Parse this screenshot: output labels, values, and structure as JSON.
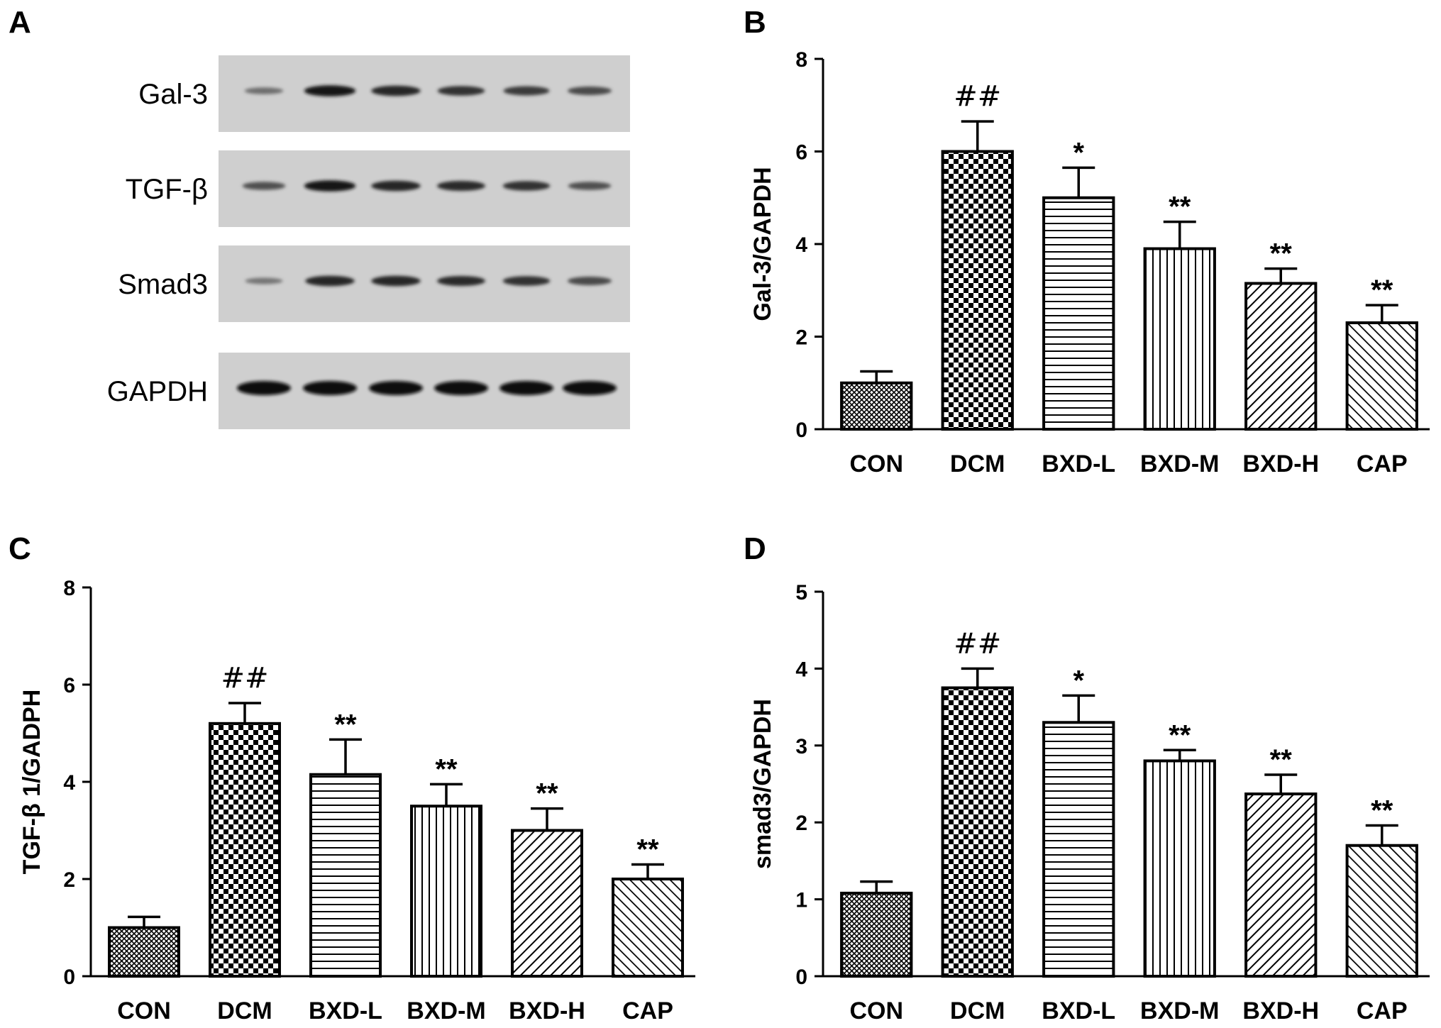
{
  "western_blot": {
    "panel_letter": "A",
    "lanes": 6,
    "rows": [
      {
        "label": "Gal-3",
        "intensities": [
          0.35,
          0.95,
          0.85,
          0.75,
          0.7,
          0.6
        ]
      },
      {
        "label": "TGF-β",
        "intensities": [
          0.55,
          0.95,
          0.85,
          0.8,
          0.75,
          0.55
        ]
      },
      {
        "label": "Smad3",
        "intensities": [
          0.3,
          0.85,
          0.85,
          0.8,
          0.75,
          0.6
        ]
      },
      {
        "label": "GAPDH",
        "intensities": [
          1.0,
          1.0,
          1.0,
          1.0,
          1.0,
          1.0
        ]
      }
    ]
  },
  "chart_data": [
    {
      "panel_letter": "B",
      "type": "bar",
      "categories": [
        "CON",
        "DCM",
        "BXD-L",
        "BXD-M",
        "BXD-H",
        "CAP"
      ],
      "values": [
        1.0,
        6.0,
        5.0,
        3.9,
        3.15,
        2.3
      ],
      "errors": [
        0.25,
        0.65,
        0.65,
        0.58,
        0.32,
        0.38
      ],
      "annotations": [
        "",
        "##",
        "*",
        "**",
        "**",
        "**"
      ],
      "ylabel": "Gal-3/GAPDH",
      "ylim": [
        0,
        8
      ],
      "yticks": [
        "0",
        "2",
        "4",
        "6",
        "8"
      ]
    },
    {
      "panel_letter": "C",
      "type": "bar",
      "categories": [
        "CON",
        "DCM",
        "BXD-L",
        "BXD-M",
        "BXD-H",
        "CAP"
      ],
      "values": [
        1.0,
        5.2,
        4.15,
        3.5,
        3.0,
        2.0
      ],
      "errors": [
        0.22,
        0.42,
        0.72,
        0.45,
        0.45,
        0.3
      ],
      "annotations": [
        "",
        "##",
        "**",
        "**",
        "**",
        "**"
      ],
      "ylabel": "TGF-β 1/GADPH",
      "ylim": [
        0,
        8
      ],
      "yticks": [
        "0",
        "2",
        "4",
        "6",
        "8"
      ]
    },
    {
      "panel_letter": "D",
      "type": "bar",
      "categories": [
        "CON",
        "DCM",
        "BXD-L",
        "BXD-M",
        "BXD-H",
        "CAP"
      ],
      "values": [
        1.08,
        3.75,
        3.3,
        2.8,
        2.37,
        1.7
      ],
      "errors": [
        0.15,
        0.25,
        0.35,
        0.14,
        0.25,
        0.26
      ],
      "annotations": [
        "",
        "##",
        "*",
        "**",
        "**",
        "**"
      ],
      "ylabel": "smad3/GAPDH",
      "ylim": [
        0,
        5
      ],
      "yticks": [
        "0",
        "1",
        "2",
        "3",
        "4",
        "5"
      ]
    }
  ]
}
